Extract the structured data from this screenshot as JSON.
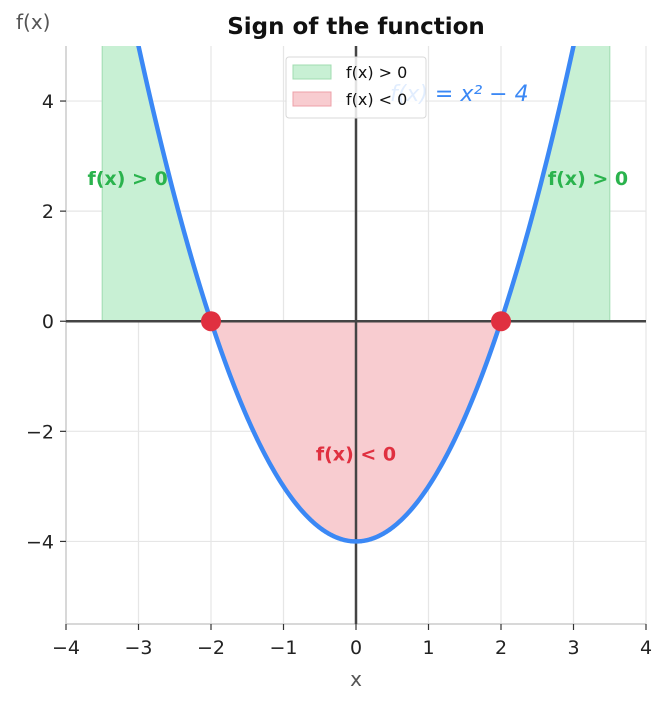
{
  "chart_data": {
    "type": "line",
    "title": "Sign of the function",
    "xlabel": "x",
    "ylabel": "f(x)",
    "xlim": [
      -4,
      4
    ],
    "ylim": [
      -5.5,
      5
    ],
    "xticks": [
      -4,
      -3,
      -2,
      -1,
      0,
      1,
      2,
      3,
      4
    ],
    "yticks": [
      -4,
      -2,
      0,
      2,
      4
    ],
    "xtick_labels": [
      "−4",
      "−3",
      "−2",
      "−1",
      "0",
      "1",
      "2",
      "3",
      "4"
    ],
    "ytick_labels": [
      "−4",
      "−2",
      "0",
      "2",
      "4"
    ],
    "grid": true,
    "function": "x^2 - 4",
    "curve_label": "f(x) = x² − 4",
    "curve_color": "#3b88f5",
    "roots": [
      {
        "x": -2,
        "y": 0
      },
      {
        "x": 2,
        "y": 0
      }
    ],
    "root_color": "#e03040",
    "shaded_regions": [
      {
        "sign": "positive",
        "x_from": -3.5,
        "x_to": -2,
        "color": "#c8f0d4"
      },
      {
        "sign": "negative",
        "x_from": -2,
        "x_to": 2,
        "color": "#f8ccd0"
      },
      {
        "sign": "positive",
        "x_from": 2,
        "x_to": 3.5,
        "color": "#c8f0d4"
      }
    ],
    "legend": {
      "placement": "top-center",
      "entries": [
        {
          "label": "f(x) > 0",
          "color": "#c8f0d4",
          "edge": "#a0dcb0"
        },
        {
          "label": "f(x) < 0",
          "color": "#f8ccd0",
          "edge": "#eea0a8"
        }
      ]
    },
    "annotations": [
      {
        "text": "f(x) > 0",
        "x": -3.15,
        "y": 2.6,
        "color": "#2ab34d"
      },
      {
        "text": "f(x) > 0",
        "x": 3.2,
        "y": 2.6,
        "color": "#2ab34d"
      },
      {
        "text": "f(x) < 0",
        "x": 0,
        "y": -2.4,
        "color": "#e03040"
      }
    ]
  }
}
